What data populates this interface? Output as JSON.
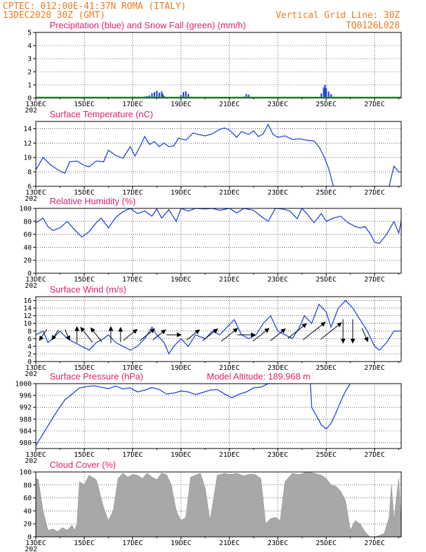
{
  "header": {
    "station": "CPTEC:   012:00E-41:37N  ROMA (ITALY)",
    "run": "13DEC2020 30Z (GMT)",
    "grid_note": "Vertical Grid Line: 30Z",
    "code": "TQ0126L028"
  },
  "colors": {
    "header": "#f07a1e",
    "title": "#e0206e",
    "series": "#2244dd",
    "snow": "#22aa22",
    "cloud": "#a8a8a8",
    "arrow": "#000000"
  },
  "time_axis": {
    "start_day": 13,
    "end_day": 28.1,
    "ticks": [
      {
        "day": 13,
        "label": "13DEC"
      },
      {
        "day": 15,
        "label": "15DEC"
      },
      {
        "day": 17,
        "label": "17DEC"
      },
      {
        "day": 19,
        "label": "19DEC"
      },
      {
        "day": 21,
        "label": "21DEC"
      },
      {
        "day": 23,
        "label": "23DEC"
      },
      {
        "day": 25,
        "label": "25DEC"
      },
      {
        "day": 27,
        "label": "27DEC"
      }
    ],
    "cut_year_label": "202"
  },
  "chart_data": [
    {
      "id": "precip",
      "type": "bar",
      "title": "Precipitation (blue) and Snow Fall (green) (mm/h)",
      "ylim": [
        0,
        5
      ],
      "yticks": [
        0,
        1,
        2,
        3,
        4,
        5
      ],
      "series": [
        {
          "name": "Precipitation",
          "color": "#2244dd",
          "points": [
            [
              16.9,
              0.08
            ],
            [
              17.0,
              0.12
            ],
            [
              17.1,
              0.1
            ],
            [
              17.3,
              0.06
            ],
            [
              17.5,
              0.12
            ],
            [
              17.6,
              0.15
            ],
            [
              17.7,
              0.2
            ],
            [
              17.8,
              0.35
            ],
            [
              17.9,
              0.45
            ],
            [
              18.0,
              0.55
            ],
            [
              18.1,
              0.4
            ],
            [
              18.2,
              0.5
            ],
            [
              18.25,
              0.3
            ],
            [
              18.3,
              0.15
            ],
            [
              19.0,
              0.2
            ],
            [
              19.1,
              0.45
            ],
            [
              19.2,
              0.5
            ],
            [
              19.3,
              0.3
            ],
            [
              19.4,
              0.1
            ],
            [
              20.0,
              0.05
            ],
            [
              20.6,
              0.08
            ],
            [
              21.1,
              0.05
            ],
            [
              21.6,
              0.12
            ],
            [
              21.7,
              0.3
            ],
            [
              21.8,
              0.25
            ],
            [
              21.9,
              0.1
            ],
            [
              23.3,
              0.04
            ],
            [
              24.8,
              0.35
            ],
            [
              24.9,
              0.8
            ],
            [
              24.95,
              1.0
            ],
            [
              25.0,
              0.75
            ],
            [
              25.1,
              0.5
            ],
            [
              25.2,
              0.3
            ],
            [
              25.3,
              0.1
            ],
            [
              25.5,
              0.05
            ]
          ]
        },
        {
          "name": "Snow Fall",
          "color": "#22aa22",
          "baseline": true
        }
      ]
    },
    {
      "id": "temperature",
      "type": "line",
      "title": "Surface Temperature (nC)",
      "ylim": [
        6,
        15
      ],
      "yticks": [
        6,
        8,
        10,
        12,
        14
      ],
      "x": [
        13.0,
        13.3,
        13.6,
        13.9,
        14.2,
        14.4,
        14.7,
        15.0,
        15.2,
        15.5,
        15.8,
        16.0,
        16.3,
        16.6,
        16.9,
        17.1,
        17.3,
        17.5,
        17.7,
        17.9,
        18.1,
        18.3,
        18.5,
        18.7,
        18.9,
        19.2,
        19.5,
        19.7,
        20.0,
        20.3,
        20.6,
        20.8,
        21.0,
        21.3,
        21.5,
        21.8,
        22.0,
        22.2,
        22.4,
        22.6,
        22.8,
        23.0,
        23.3,
        23.6,
        23.9,
        24.2,
        24.5,
        24.7,
        24.9,
        25.1,
        25.3,
        27.6,
        27.8,
        28.0,
        28.1
      ],
      "y": [
        8.3,
        10.0,
        9.0,
        8.3,
        7.8,
        9.4,
        9.5,
        8.9,
        8.7,
        9.5,
        9.4,
        11.0,
        10.3,
        9.9,
        11.5,
        10.2,
        11.5,
        12.9,
        11.8,
        12.2,
        11.5,
        12.0,
        11.5,
        11.6,
        12.7,
        12.4,
        13.4,
        13.2,
        13.0,
        13.3,
        13.9,
        14.1,
        13.8,
        12.8,
        13.6,
        13.2,
        13.7,
        12.9,
        13.3,
        14.6,
        13.2,
        12.8,
        13.0,
        12.5,
        12.6,
        12.4,
        12.3,
        11.5,
        10.2,
        8.5,
        6.0,
        6.0,
        8.8,
        8.0,
        8.0
      ],
      "gaps_below_axis": [
        [
          25.3,
          27.6
        ]
      ]
    },
    {
      "id": "humidity",
      "type": "line",
      "title": "Relative Humidity (%)",
      "ylim": [
        0,
        100
      ],
      "yticks": [
        0,
        20,
        40,
        60,
        80,
        100
      ],
      "x": [
        13.0,
        13.3,
        13.5,
        13.7,
        14.0,
        14.3,
        14.6,
        14.9,
        15.2,
        15.5,
        15.7,
        16.0,
        16.3,
        16.6,
        16.9,
        17.2,
        17.5,
        17.8,
        18.0,
        18.2,
        18.5,
        18.8,
        19.0,
        19.3,
        19.6,
        20.0,
        20.3,
        20.6,
        21.0,
        21.3,
        21.6,
        22.0,
        22.3,
        22.6,
        22.9,
        23.2,
        23.5,
        23.8,
        24.0,
        24.2,
        24.5,
        24.8,
        25.0,
        25.3,
        25.6,
        25.9,
        26.2,
        26.4,
        26.6,
        26.8,
        27.0,
        27.2,
        27.5,
        27.8,
        28.0,
        28.1
      ],
      "y": [
        78,
        85,
        72,
        66,
        70,
        80,
        67,
        56,
        64,
        78,
        85,
        70,
        86,
        95,
        100,
        92,
        96,
        88,
        99,
        85,
        98,
        80,
        100,
        96,
        100,
        99,
        100,
        97,
        100,
        93,
        100,
        97,
        88,
        80,
        100,
        99,
        96,
        84,
        100,
        92,
        78,
        92,
        80,
        85,
        88,
        78,
        72,
        70,
        72,
        62,
        48,
        46,
        60,
        80,
        62,
        80
      ]
    },
    {
      "id": "wind",
      "type": "line",
      "title": "Surface Wind (m/s)",
      "ylim": [
        0,
        17
      ],
      "yticks": [
        0,
        2,
        4,
        6,
        8,
        10,
        12,
        14,
        16
      ],
      "x": [
        13.0,
        13.3,
        13.5,
        13.7,
        14.0,
        14.3,
        14.6,
        14.9,
        15.2,
        15.5,
        15.8,
        16.0,
        16.3,
        16.6,
        16.9,
        17.2,
        17.5,
        17.8,
        18.0,
        18.3,
        18.5,
        18.7,
        19.0,
        19.3,
        19.6,
        20.0,
        20.3,
        20.6,
        20.9,
        21.2,
        21.5,
        21.8,
        22.1,
        22.4,
        22.7,
        23.0,
        23.3,
        23.6,
        23.9,
        24.1,
        24.4,
        24.7,
        25.0,
        25.2,
        25.5,
        25.8,
        26.1,
        26.4,
        26.7,
        27.0,
        27.2,
        27.5,
        27.8,
        28.1
      ],
      "y": [
        7,
        8,
        5,
        6,
        8,
        6,
        5,
        4,
        3,
        5,
        6,
        7,
        5,
        4,
        3,
        4,
        6,
        9,
        7,
        5,
        2,
        4,
        6,
        4,
        7,
        6,
        8,
        7,
        9,
        11,
        7,
        6,
        7,
        10,
        12,
        8,
        7,
        6,
        9,
        12,
        10,
        15,
        13,
        9,
        14,
        16,
        14,
        11,
        8,
        4,
        3,
        5,
        8,
        8
      ],
      "arrows": [
        {
          "day": 13.3,
          "speed": 5,
          "dir": "down-left"
        },
        {
          "day": 13.8,
          "speed": 4,
          "dir": "down-left"
        },
        {
          "day": 14.3,
          "speed": 4,
          "dir": "down-right"
        },
        {
          "day": 14.7,
          "speed": 7,
          "dir": "up"
        },
        {
          "day": 15.1,
          "speed": 9,
          "dir": "up-left"
        },
        {
          "day": 15.5,
          "speed": 8,
          "dir": "up-left"
        },
        {
          "day": 16.1,
          "speed": 7,
          "dir": "up"
        },
        {
          "day": 16.5,
          "speed": 6,
          "dir": "up"
        },
        {
          "day": 16.9,
          "speed": 8,
          "dir": "up-right"
        },
        {
          "day": 17.6,
          "speed": 9,
          "dir": "up-right"
        },
        {
          "day": 18.1,
          "speed": 7,
          "dir": "up-right"
        },
        {
          "day": 18.7,
          "speed": 6,
          "dir": "right"
        },
        {
          "day": 19.5,
          "speed": 7,
          "dir": "up-right"
        },
        {
          "day": 20.2,
          "speed": 9,
          "dir": "up-right"
        },
        {
          "day": 21.0,
          "speed": 10,
          "dir": "up-right"
        },
        {
          "day": 21.7,
          "speed": 8,
          "dir": "right"
        },
        {
          "day": 22.3,
          "speed": 10,
          "dir": "up-right"
        },
        {
          "day": 23.0,
          "speed": 9,
          "dir": "up-right"
        },
        {
          "day": 23.8,
          "speed": 12,
          "dir": "up-right"
        },
        {
          "day": 24.5,
          "speed": 15,
          "dir": "up-right"
        },
        {
          "day": 25.2,
          "speed": 14,
          "dir": "up-right"
        },
        {
          "day": 25.7,
          "speed": 12,
          "dir": "down"
        },
        {
          "day": 26.1,
          "speed": 12,
          "dir": "down"
        },
        {
          "day": 26.6,
          "speed": 6,
          "dir": "down-right"
        }
      ]
    },
    {
      "id": "pressure",
      "type": "line",
      "title": "Surface Pressure (hPa)",
      "subtitle": "Model Altitude: 189.968  m",
      "ylim": [
        978,
        1000
      ],
      "yticks": [
        980,
        984,
        988,
        992,
        996,
        1000
      ],
      "x": [
        13.0,
        13.3,
        13.6,
        13.9,
        14.2,
        14.5,
        14.8,
        15.1,
        15.4,
        15.7,
        16.0,
        16.3,
        16.6,
        16.9,
        17.2,
        17.5,
        17.8,
        18.1,
        18.4,
        18.7,
        19.0,
        19.3,
        19.6,
        19.9,
        20.2,
        20.5,
        20.8,
        21.1,
        21.4,
        21.7,
        22.0,
        22.3,
        22.6,
        22.9,
        24.4,
        24.6,
        24.8,
        25.0,
        25.2,
        25.4,
        25.6,
        25.8,
        26.0
      ],
      "y": [
        979,
        983,
        987,
        991,
        994.5,
        996.5,
        998.5,
        999,
        999.3,
        998.8,
        998.3,
        999.2,
        998.2,
        998.6,
        997.2,
        997.8,
        998.7,
        998,
        996.5,
        996.8,
        997.5,
        997.2,
        996.3,
        997,
        997.8,
        998,
        996.5,
        995.2,
        996.4,
        997.2,
        998.6,
        998.8,
        1000,
        1000,
        992,
        989,
        986,
        984.6,
        986.5,
        990,
        994,
        997.5,
        1000
      ],
      "gaps_above_axis": [
        [
          22.9,
          24.4
        ]
      ]
    },
    {
      "id": "cloud",
      "type": "area",
      "title": "Cloud Cover (%)",
      "ylim": [
        0,
        100
      ],
      "yticks": [
        0,
        20,
        40,
        60,
        80,
        100
      ],
      "x": [
        13.0,
        13.1,
        13.3,
        13.5,
        13.7,
        13.9,
        14.1,
        14.3,
        14.5,
        14.6,
        14.7,
        14.8,
        15.0,
        15.2,
        15.5,
        15.8,
        16.0,
        16.2,
        16.4,
        16.6,
        16.8,
        17.0,
        17.2,
        17.4,
        17.6,
        17.8,
        18.0,
        18.2,
        18.4,
        18.6,
        18.8,
        19.0,
        19.2,
        19.4,
        19.6,
        19.8,
        20.0,
        20.2,
        20.5,
        20.8,
        21.0,
        21.3,
        21.6,
        21.9,
        22.1,
        22.3,
        22.5,
        22.7,
        22.9,
        23.1,
        23.3,
        23.6,
        23.9,
        24.2,
        24.5,
        24.8,
        25.0,
        25.2,
        25.4,
        25.6,
        25.8,
        26.0,
        26.2,
        26.4,
        26.6,
        26.8,
        27.0,
        27.2,
        27.4,
        27.6,
        27.7,
        27.8,
        27.9,
        28.0,
        28.1
      ],
      "y": [
        90,
        88,
        40,
        10,
        12,
        8,
        14,
        10,
        18,
        10,
        20,
        85,
        80,
        95,
        88,
        45,
        25,
        40,
        90,
        98,
        92,
        96,
        95,
        90,
        98,
        92,
        88,
        98,
        96,
        80,
        40,
        25,
        30,
        92,
        95,
        98,
        75,
        25,
        95,
        98,
        96,
        98,
        94,
        97,
        95,
        90,
        20,
        28,
        30,
        25,
        85,
        98,
        96,
        100,
        98,
        95,
        90,
        80,
        78,
        70,
        55,
        10,
        25,
        20,
        8,
        0,
        0,
        2,
        5,
        30,
        80,
        25,
        60,
        90,
        18
      ]
    }
  ]
}
